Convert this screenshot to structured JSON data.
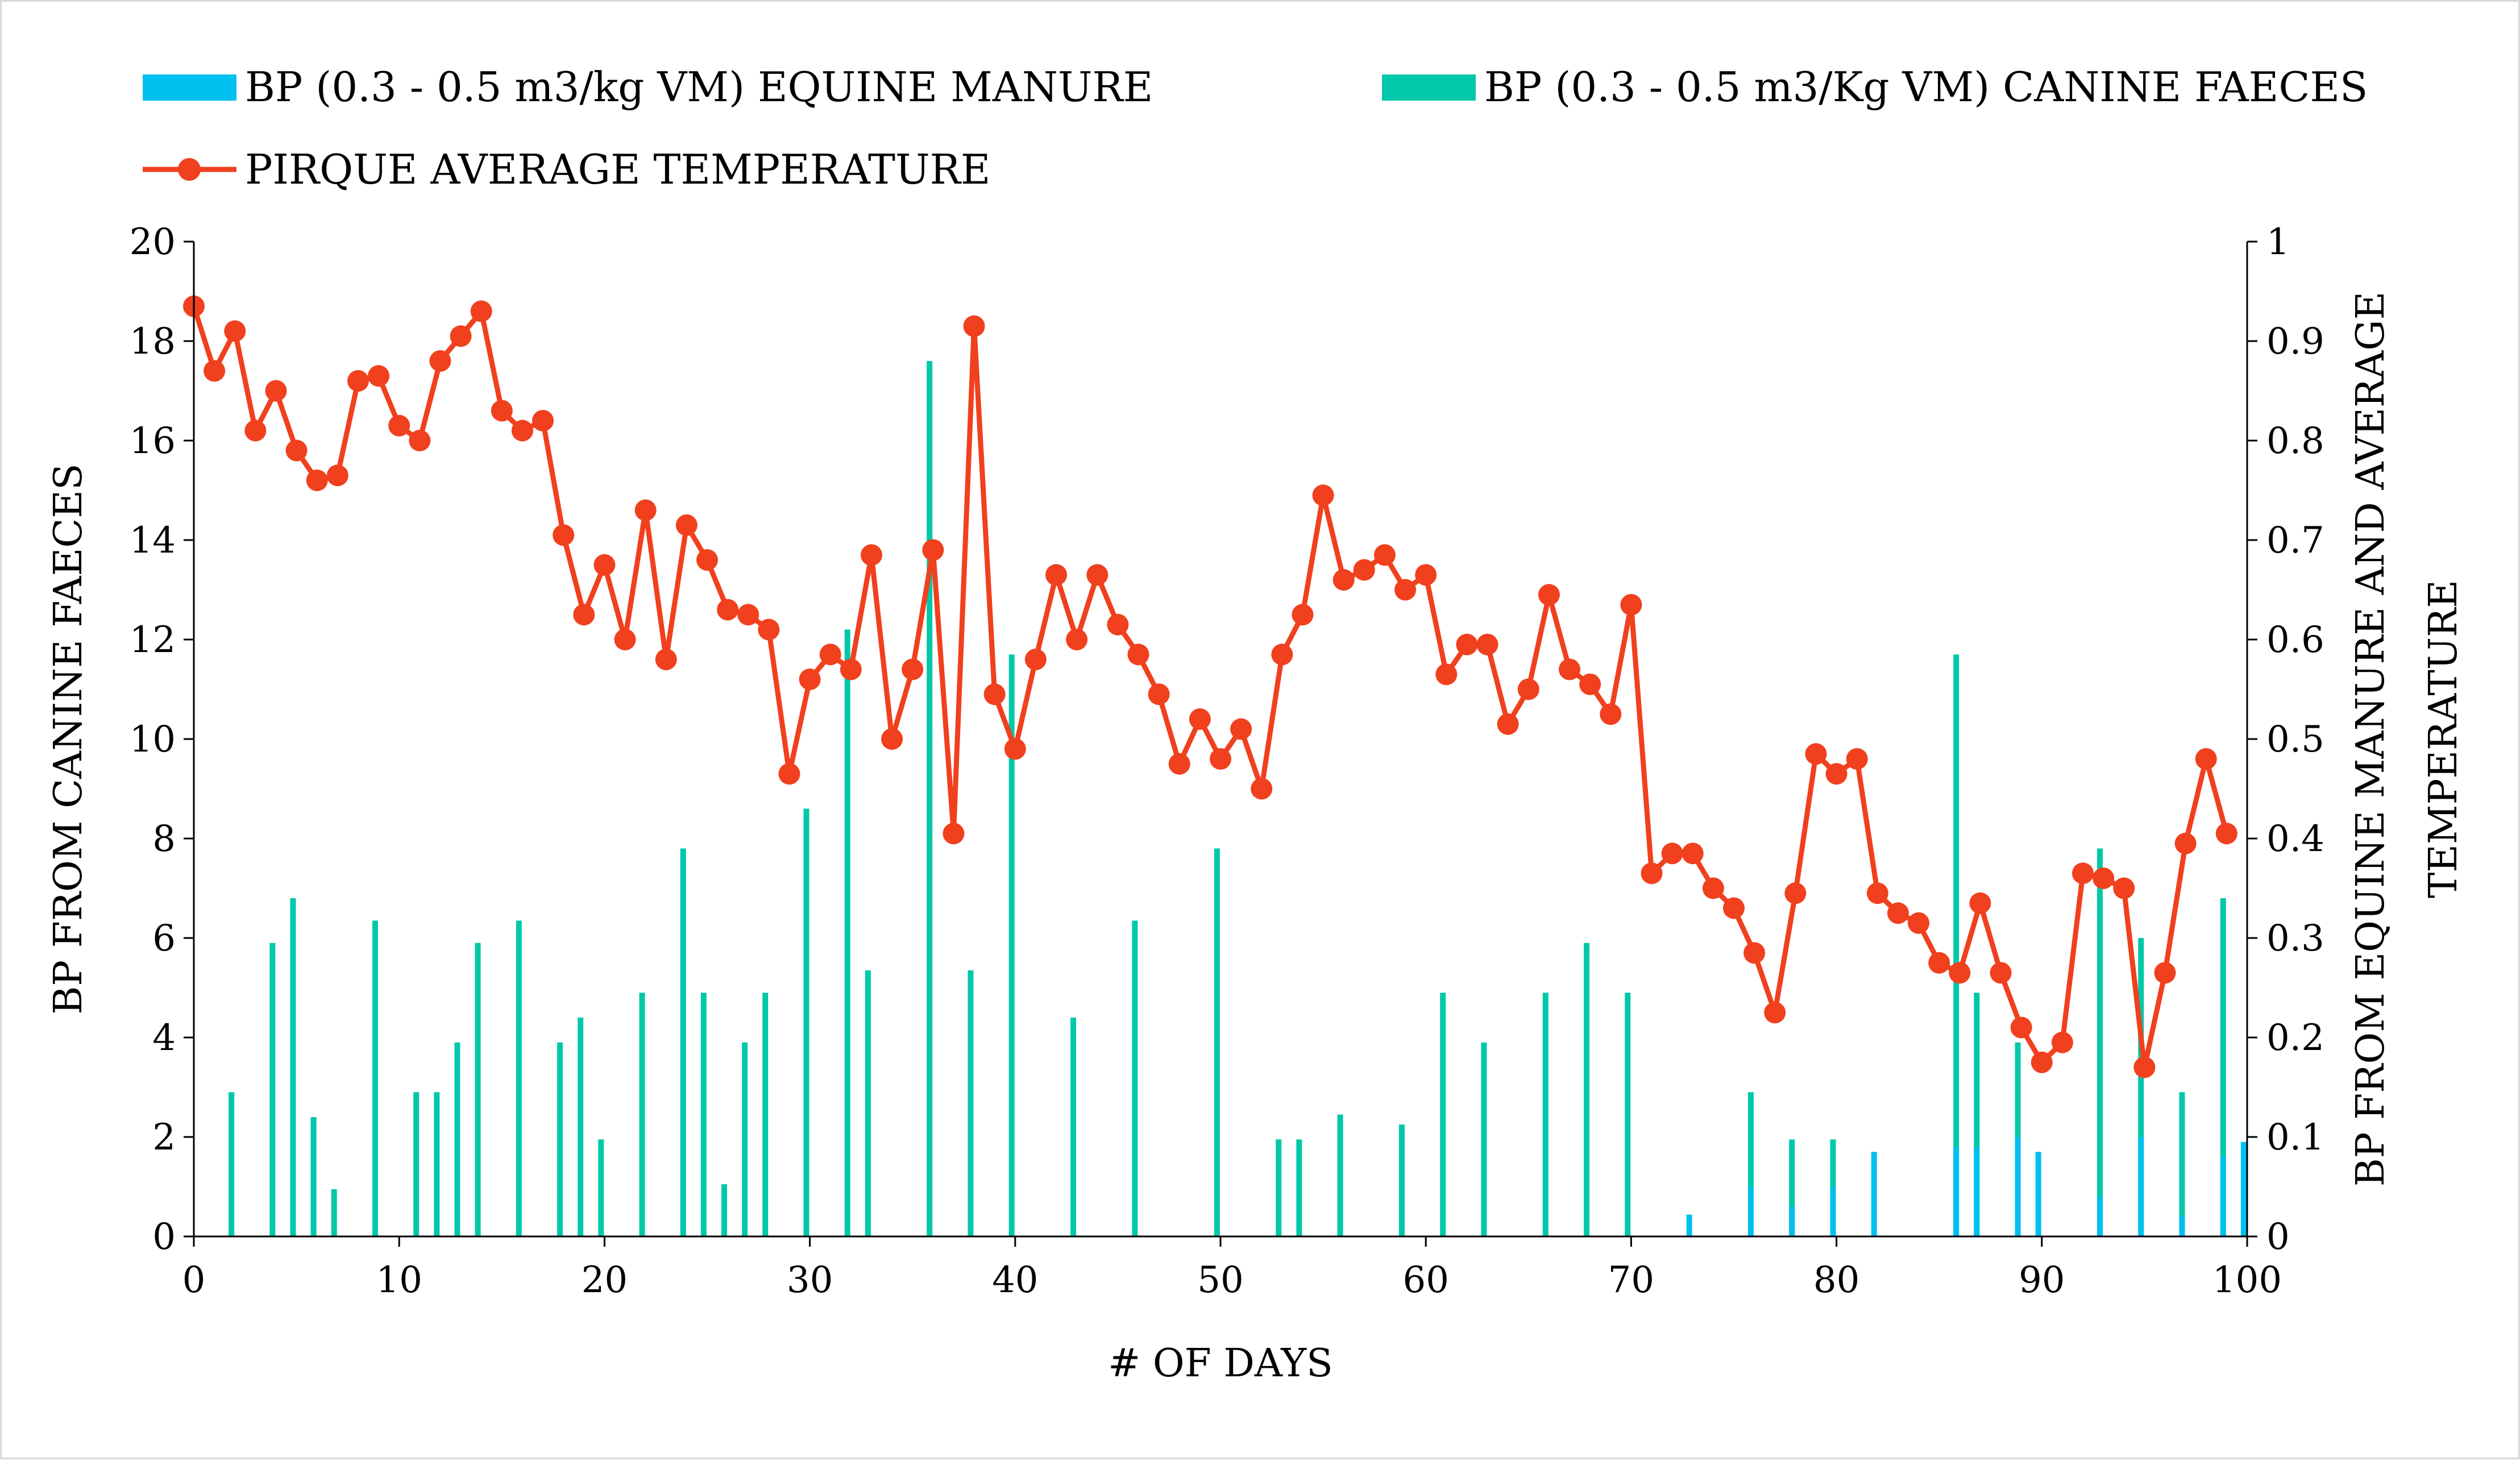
{
  "chart_data": {
    "type": "bar+line",
    "title": "",
    "xlabel": "# OF DAYS",
    "ylabel_left": "BP FROM CANINE FAECES",
    "ylabel_right": [
      "BP FROM EQUINE MANURE AND AVERAGE",
      "TEMPERATURE"
    ],
    "xlim": [
      0,
      100
    ],
    "ylim_left": [
      0,
      20
    ],
    "ylim_right": [
      0,
      1
    ],
    "x_ticks": [
      "0",
      "10",
      "20",
      "30",
      "40",
      "50",
      "60",
      "70",
      "80",
      "90",
      "100"
    ],
    "y_left_ticks": [
      "0",
      "2",
      "4",
      "6",
      "8",
      "10",
      "12",
      "14",
      "16",
      "18",
      "20"
    ],
    "y_right_ticks": [
      "0",
      "0.1",
      "0.2",
      "0.3",
      "0.4",
      "0.5",
      "0.6",
      "0.7",
      "0.8",
      "0.9",
      "1"
    ],
    "legend": {
      "position": "top",
      "entries": [
        {
          "label": "BP (0.3 - 0.5 m3/kg VM) EQUINE MANURE",
          "color": "#00c0f0",
          "marker": "bar"
        },
        {
          "label": "BP (0.3 - 0.5 m3/Kg VM) CANINE FAECES",
          "color": "#00c8a8",
          "marker": "bar"
        },
        {
          "label": "PIRQUE AVERAGE TEMPERATURE",
          "color": "#f0401e",
          "marker": "line-circle"
        }
      ]
    },
    "series": [
      {
        "name": "BP (0.3 - 0.5 m3/Kg VM) CANINE FAECES",
        "axis": "left",
        "color": "#00c8a8",
        "points": [
          [
            1,
            2.9
          ],
          [
            3,
            5.9
          ],
          [
            4,
            6.8
          ],
          [
            5,
            2.4
          ],
          [
            6,
            0.95
          ],
          [
            8,
            6.35
          ],
          [
            10,
            2.9
          ],
          [
            11,
            2.9
          ],
          [
            12,
            3.9
          ],
          [
            13,
            5.9
          ],
          [
            15,
            6.35
          ],
          [
            17,
            3.9
          ],
          [
            18,
            4.4
          ],
          [
            19,
            1.95
          ],
          [
            21,
            4.9
          ],
          [
            23,
            7.8
          ],
          [
            24,
            4.9
          ],
          [
            25,
            1.05
          ],
          [
            26,
            3.9
          ],
          [
            27,
            4.9
          ],
          [
            29,
            8.6
          ],
          [
            31,
            12.2
          ],
          [
            32,
            5.35
          ],
          [
            35,
            17.6
          ],
          [
            37,
            5.35
          ],
          [
            39,
            11.7
          ],
          [
            42,
            4.4
          ],
          [
            45,
            6.35
          ],
          [
            49,
            7.8
          ],
          [
            52,
            1.95
          ],
          [
            53,
            1.95
          ],
          [
            55,
            2.45
          ],
          [
            58,
            2.25
          ],
          [
            60,
            4.9
          ],
          [
            62,
            3.9
          ],
          [
            65,
            4.9
          ],
          [
            67,
            5.9
          ],
          [
            69,
            4.9
          ],
          [
            75,
            2.9
          ],
          [
            77,
            1.95
          ],
          [
            79,
            1.95
          ],
          [
            85,
            11.7
          ],
          [
            86,
            4.9
          ],
          [
            88,
            3.9
          ],
          [
            92,
            7.8
          ],
          [
            94,
            6.0
          ],
          [
            96,
            2.9
          ],
          [
            98,
            6.8
          ]
        ]
      },
      {
        "name": "BP (0.3 - 0.5 m3/kg VM) EQUINE MANURE",
        "axis": "right",
        "color": "#00c0f0",
        "points": [
          [
            72,
            0.022
          ],
          [
            75,
            0.05
          ],
          [
            77,
            0.03
          ],
          [
            79,
            0.05
          ],
          [
            81,
            0.085
          ],
          [
            85,
            0.09
          ],
          [
            86,
            0.09
          ],
          [
            88,
            0.1
          ],
          [
            89,
            0.085
          ],
          [
            92,
            0.04
          ],
          [
            94,
            0.1
          ],
          [
            96,
            0.02
          ],
          [
            98,
            0.08
          ],
          [
            99,
            0.095
          ]
        ]
      },
      {
        "name": "PIRQUE AVERAGE TEMPERATURE",
        "axis": "right",
        "color": "#f0401e",
        "x": [
          0,
          1,
          2,
          3,
          4,
          5,
          6,
          7,
          8,
          9,
          10,
          11,
          12,
          13,
          14,
          15,
          16,
          17,
          18,
          19,
          20,
          21,
          22,
          23,
          24,
          25,
          26,
          27,
          28,
          29,
          30,
          31,
          32,
          33,
          34,
          35,
          36,
          37,
          38,
          39,
          40,
          41,
          42,
          43,
          44,
          45,
          46,
          47,
          48,
          49,
          50,
          51,
          52,
          53,
          54,
          55,
          56,
          57,
          58,
          59,
          60,
          61,
          62,
          63,
          64,
          65,
          66,
          67,
          68,
          69,
          70,
          71,
          72,
          73,
          74,
          75,
          76,
          77,
          78,
          79,
          80,
          81,
          82,
          83,
          84,
          85,
          86,
          87,
          88,
          89,
          90,
          91,
          92,
          93,
          94,
          95,
          96,
          97,
          98,
          99
        ],
        "values": [
          0.935,
          0.87,
          0.91,
          0.81,
          0.85,
          0.79,
          0.76,
          0.765,
          0.86,
          0.865,
          0.815,
          0.8,
          0.88,
          0.905,
          0.93,
          0.83,
          0.81,
          0.82,
          0.705,
          0.625,
          0.675,
          0.6,
          0.73,
          0.58,
          0.715,
          0.68,
          0.63,
          0.625,
          0.61,
          0.465,
          0.56,
          0.585,
          0.57,
          0.685,
          0.5,
          0.57,
          0.69,
          0.405,
          0.915,
          0.545,
          0.49,
          0.58,
          0.665,
          0.6,
          0.665,
          0.615,
          0.585,
          0.545,
          0.475,
          0.52,
          0.48,
          0.51,
          0.45,
          0.585,
          0.625,
          0.745,
          0.66,
          0.67,
          0.685,
          0.65,
          0.665,
          0.565,
          0.595,
          0.595,
          0.515,
          0.55,
          0.645,
          0.57,
          0.555,
          0.525,
          0.635,
          0.365,
          0.385,
          0.385,
          0.35,
          0.33,
          0.285,
          0.225,
          0.345,
          0.485,
          0.465,
          0.48,
          0.345,
          0.325,
          0.315,
          0.275,
          0.265,
          0.335,
          0.265,
          0.21,
          0.175,
          0.195,
          0.365,
          0.36,
          0.35,
          0.17,
          0.265,
          0.395,
          0.48,
          0.405
        ]
      }
    ]
  }
}
